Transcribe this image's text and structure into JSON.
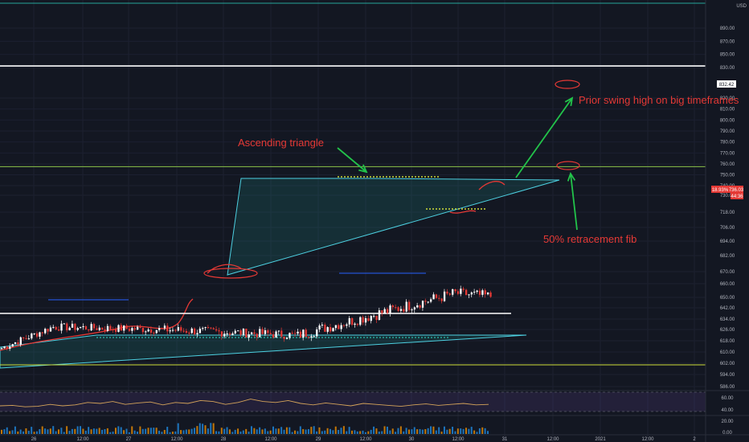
{
  "chart_data": {
    "type": "candlestick",
    "currency_label": "USD",
    "y_axis": {
      "min": 585,
      "max": 905,
      "ticks": [
        890,
        870,
        850,
        830,
        820,
        810,
        800,
        790,
        780,
        770,
        760,
        750,
        740,
        730,
        718,
        706,
        694,
        682,
        670,
        660,
        650,
        642,
        634,
        626,
        618,
        610,
        602,
        594,
        586
      ]
    },
    "x_axis": {
      "tick_labels": [
        "26",
        "12:00",
        "27",
        "12:00",
        "28",
        "12:00",
        "29",
        "12:00",
        "30",
        "12:00",
        "31",
        "12:00",
        "2021",
        "12:00",
        "2"
      ]
    },
    "price_flags": [
      {
        "label": "832.42",
        "value": 832.42
      },
      {
        "label": "18.93%",
        "value": 736.0,
        "color": "#e53935"
      },
      {
        "label": "736.03",
        "value": 736.03,
        "color": "#e53935"
      },
      {
        "label": "44:36",
        "value": 731.0,
        "color": "#e53935"
      }
    ],
    "levels": [
      {
        "name": "swing-high",
        "value": 832.42,
        "color": "#ffffff"
      },
      {
        "name": "fib-50",
        "value": 757.5,
        "color": "#8bc34a"
      },
      {
        "name": "top-line",
        "value": 903,
        "color": "#26a69a"
      },
      {
        "name": "support",
        "value": 638,
        "color": "#ffffff"
      },
      {
        "name": "low-line",
        "value": 600,
        "color": "#cddc39"
      }
    ],
    "candles": {
      "start_y": 612,
      "segments": [
        [
          20,
          628,
          0.9
        ],
        [
          40,
          626,
          1.0
        ],
        [
          50,
          622,
          1.1
        ],
        [
          58,
          653,
          1.4
        ],
        [
          66,
          642,
          1.3
        ],
        [
          68,
          718,
          2.2
        ],
        [
          74,
          692,
          2.6
        ],
        [
          80,
          742,
          2.4
        ],
        [
          88,
          722,
          2.4
        ],
        [
          96,
          742,
          1.9
        ],
        [
          103,
          705,
          2.4
        ],
        [
          112,
          727,
          2.0
        ],
        [
          120,
          716,
          1.9
        ],
        [
          130,
          736,
          1.8
        ],
        [
          140,
          726,
          1.8
        ],
        [
          152,
          734,
          1.6
        ],
        [
          160,
          722,
          1.8
        ],
        [
          167,
          734,
          1.5
        ]
      ]
    },
    "rsi": {
      "ticks": [
        "60.00",
        "40.00",
        "20.00"
      ],
      "values": [
        55,
        56,
        53,
        54,
        58,
        55,
        57,
        62,
        60,
        64,
        58,
        61,
        63,
        57,
        62,
        60,
        66,
        64,
        58,
        62,
        69,
        64,
        62,
        66,
        60,
        57,
        61,
        58,
        55,
        60,
        58,
        56,
        54,
        57,
        59,
        56,
        58,
        60,
        57,
        58
      ]
    },
    "annotations": [
      {
        "id": "ascending",
        "text": "Ascending triangle"
      },
      {
        "id": "prior-swing",
        "text": "Prior swing high on big timeframes"
      },
      {
        "id": "fib",
        "text": "50% retracement fib"
      }
    ]
  }
}
